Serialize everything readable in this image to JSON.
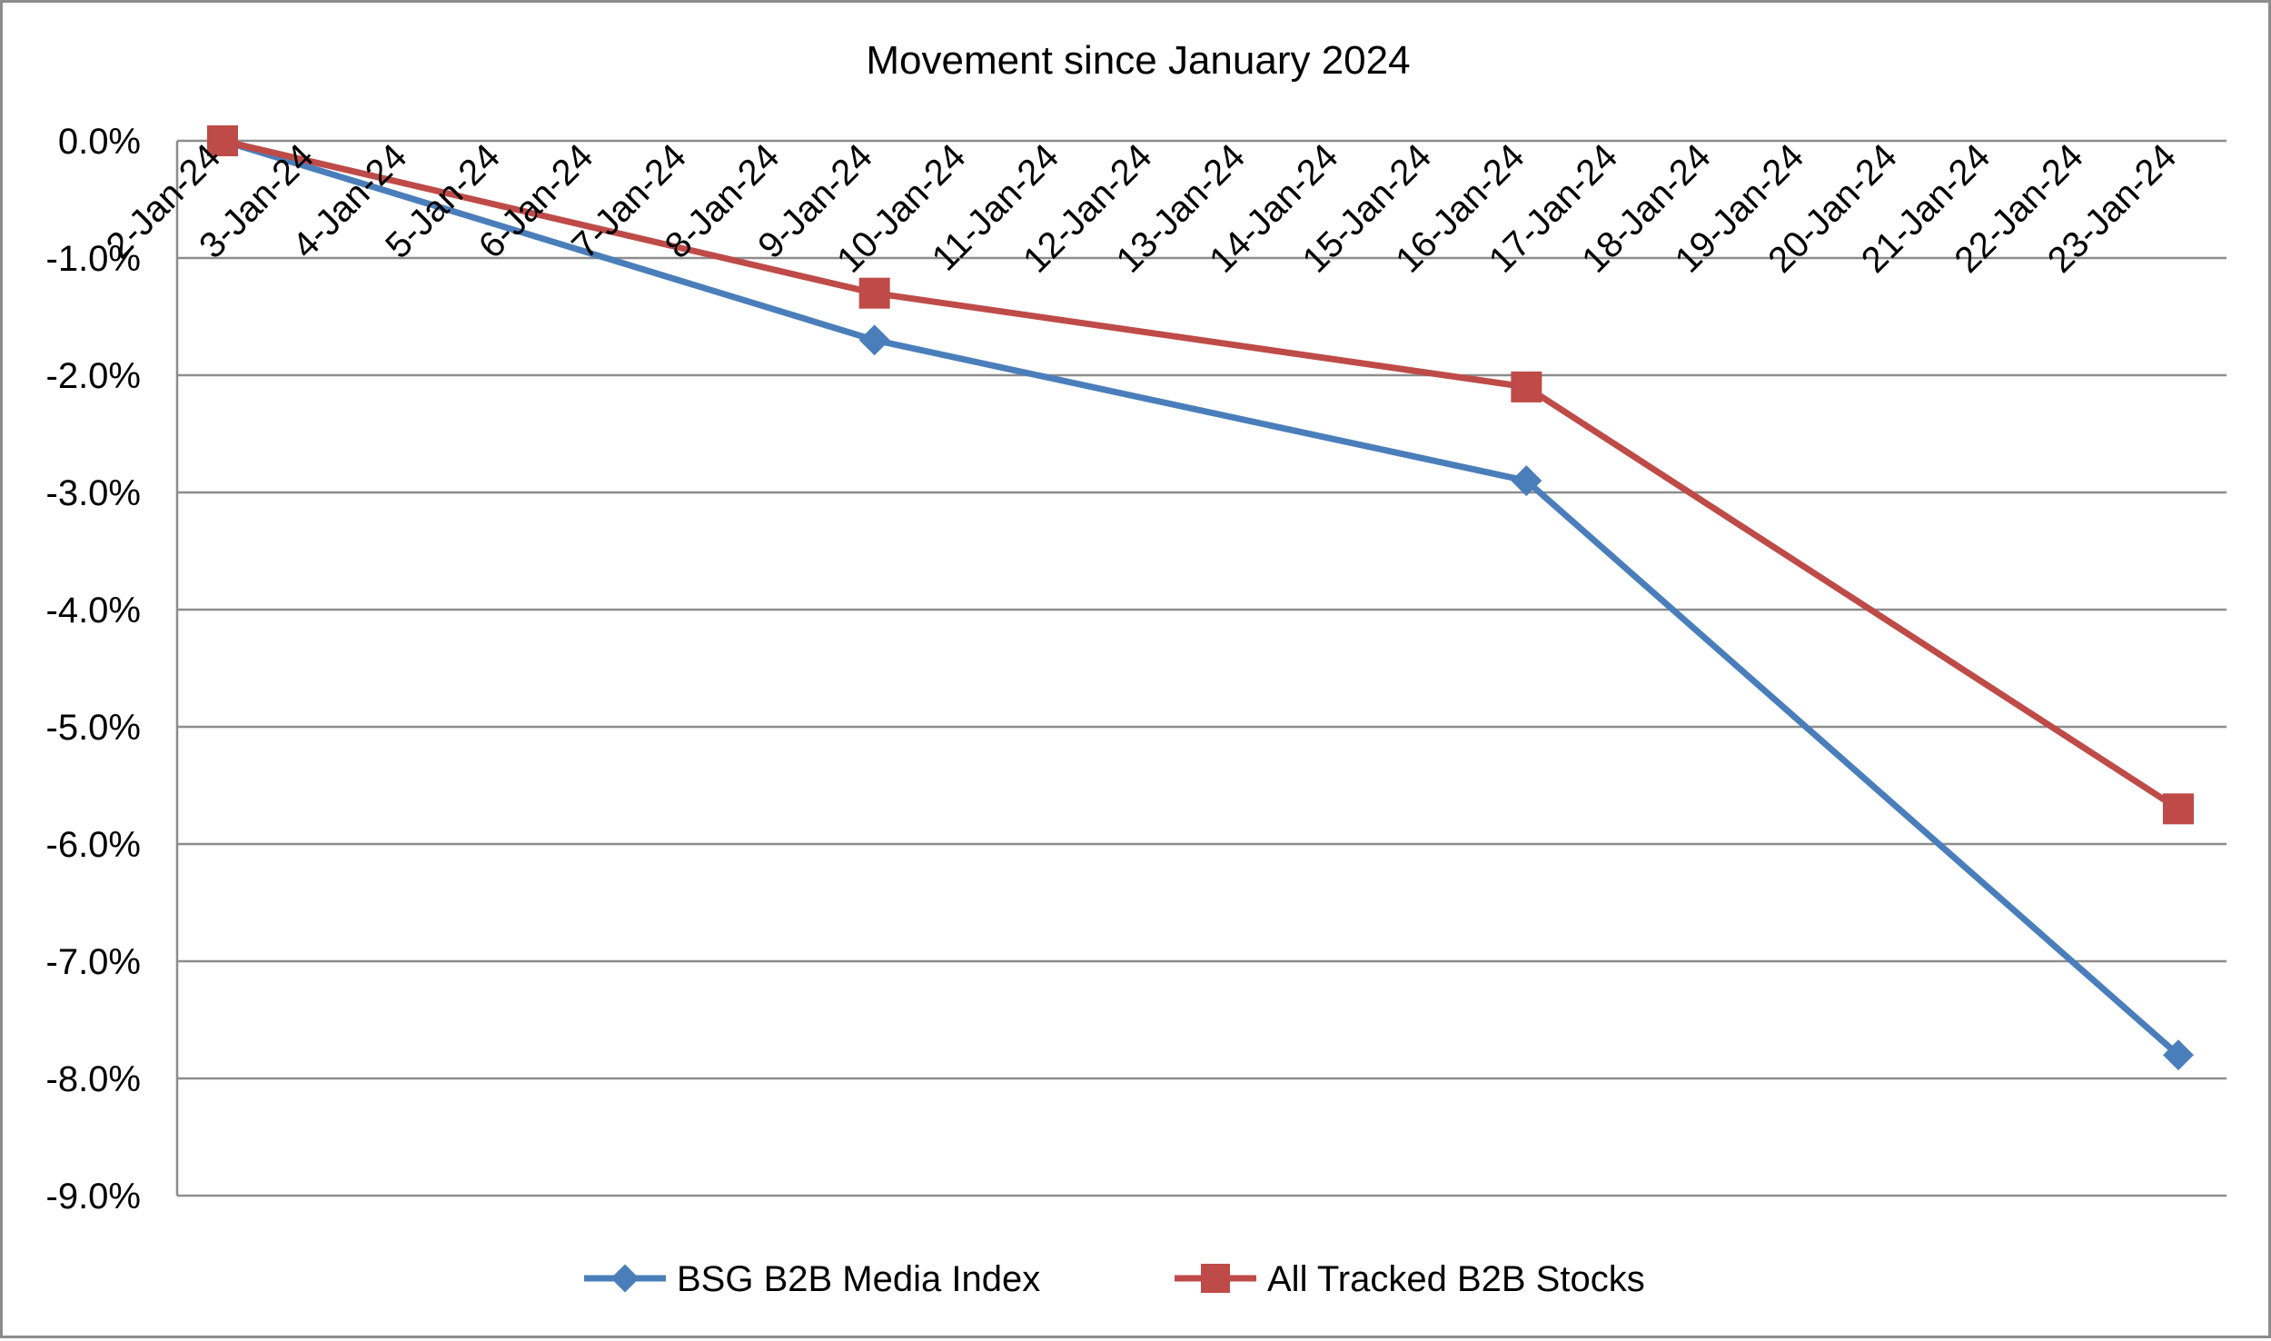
{
  "chart_data": {
    "type": "line",
    "title": "Movement since January 2024",
    "xlabel": "",
    "ylabel": "",
    "categories": [
      "2-Jan-24",
      "3-Jan-24",
      "4-Jan-24",
      "5-Jan-24",
      "6-Jan-24",
      "7-Jan-24",
      "8-Jan-24",
      "9-Jan-24",
      "10-Jan-24",
      "11-Jan-24",
      "12-Jan-24",
      "13-Jan-24",
      "14-Jan-24",
      "15-Jan-24",
      "16-Jan-24",
      "17-Jan-24",
      "18-Jan-24",
      "19-Jan-24",
      "20-Jan-24",
      "21-Jan-24",
      "22-Jan-24",
      "23-Jan-24"
    ],
    "ylim": [
      -9.0,
      0.0
    ],
    "ytick_values": [
      0,
      -1,
      -2,
      -3,
      -4,
      -5,
      -6,
      -7,
      -8,
      -9
    ],
    "ytick_labels": [
      "0.0%",
      "-1.0%",
      "-2.0%",
      "-3.0%",
      "-4.0%",
      "-5.0%",
      "-6.0%",
      "-7.0%",
      "-8.0%",
      "-9.0%"
    ],
    "grid": true,
    "legend_position": "bottom",
    "series": [
      {
        "name": "BSG B2B Media Index",
        "color": "#4a7ebb",
        "marker": "diamond",
        "points": [
          {
            "x": "2-Jan-24",
            "y": 0.0
          },
          {
            "x": "9-Jan-24",
            "y": -1.7
          },
          {
            "x": "16-Jan-24",
            "y": -2.9
          },
          {
            "x": "23-Jan-24",
            "y": -7.8
          }
        ]
      },
      {
        "name": "All Tracked B2B Stocks",
        "color": "#be4b48",
        "marker": "square",
        "points": [
          {
            "x": "2-Jan-24",
            "y": 0.0
          },
          {
            "x": "9-Jan-24",
            "y": -1.3
          },
          {
            "x": "16-Jan-24",
            "y": -2.1
          },
          {
            "x": "23-Jan-24",
            "y": -5.7
          }
        ]
      }
    ]
  }
}
